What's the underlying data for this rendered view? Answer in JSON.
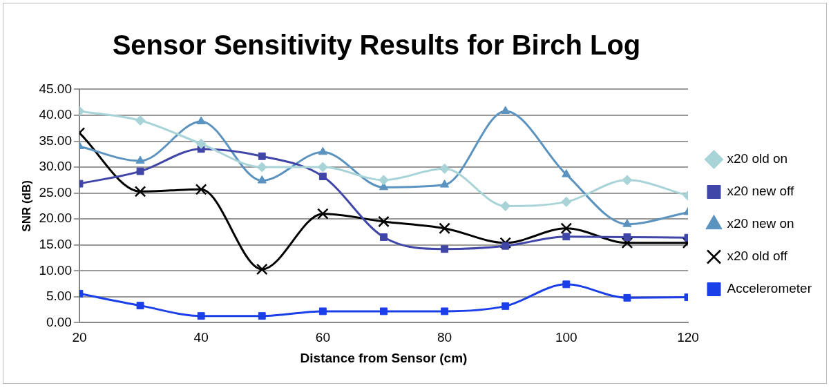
{
  "chart_data": {
    "type": "line",
    "title": "Sensor Sensitivity Results for Birch Log",
    "xlabel": "Distance from Sensor (cm)",
    "ylabel": "SNR (dB)",
    "x": [
      20,
      30,
      40,
      50,
      60,
      70,
      80,
      90,
      100,
      110,
      120
    ],
    "xlim": [
      20,
      120
    ],
    "xticks": [
      20,
      40,
      60,
      80,
      100,
      120
    ],
    "ylim": [
      0,
      45
    ],
    "yticks": [
      {
        "value": 0,
        "label": "0.00"
      },
      {
        "value": 5,
        "label": "5.00"
      },
      {
        "value": 10,
        "label": "10.00"
      },
      {
        "value": 15,
        "label": "15.00"
      },
      {
        "value": 20,
        "label": "20.00"
      },
      {
        "value": 25,
        "label": "25.00"
      },
      {
        "value": 30,
        "label": "30.00"
      },
      {
        "value": 35,
        "label": "35.00"
      },
      {
        "value": 40,
        "label": "40.00"
      },
      {
        "value": 45,
        "label": "45.00"
      }
    ],
    "grid": "y",
    "legend": "right",
    "series": [
      {
        "name": "x20 old on",
        "color": "#a8d4d8",
        "marker": "diamond",
        "values": [
          40.8,
          39,
          34.5,
          30,
          30,
          27.5,
          29.7,
          22.5,
          23.3,
          27.5,
          24.5
        ]
      },
      {
        "name": "x20 new off",
        "color": "#4046a8",
        "marker": "square",
        "values": [
          26.8,
          29.2,
          33.5,
          32.1,
          28.2,
          16.5,
          14.2,
          14.8,
          16.6,
          16.5,
          16.4
        ]
      },
      {
        "name": "x20 new on",
        "color": "#5b93c0",
        "marker": "triangle",
        "values": [
          34,
          31.2,
          38.8,
          27.4,
          32.9,
          26.1,
          26.6,
          40.8,
          28.6,
          19,
          21.3
        ]
      },
      {
        "name": "x20 old off",
        "color": "#000000",
        "marker": "cross",
        "values": [
          36.6,
          25.3,
          25.7,
          10.3,
          21,
          19.5,
          18.2,
          15.4,
          18.2,
          15.4,
          15.4
        ]
      },
      {
        "name": "Accelerometer",
        "color": "#1a3fe8",
        "marker": "square",
        "values": [
          5.6,
          3.3,
          1.3,
          1.3,
          2.2,
          2.2,
          2.2,
          3.2,
          7.4,
          4.8,
          4.9
        ]
      }
    ]
  }
}
